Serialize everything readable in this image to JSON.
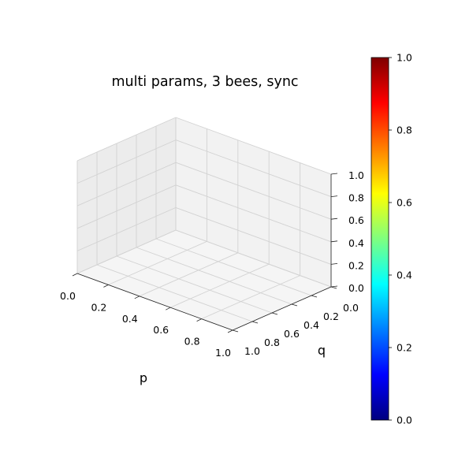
{
  "chart_data": {
    "type": "surface",
    "title": "multi params, 3 bees, sync",
    "xlabel": "p",
    "ylabel": "q",
    "zlabel": "",
    "xlim": [
      0.0,
      1.0
    ],
    "ylim": [
      0.0,
      1.0
    ],
    "zlim": [
      0.0,
      1.0
    ],
    "x_ticks": [
      "0.0",
      "0.2",
      "0.4",
      "0.6",
      "0.8",
      "1.0"
    ],
    "y_ticks": [
      "0.0",
      "0.2",
      "0.4",
      "0.6",
      "0.8",
      "1.0"
    ],
    "z_ticks": [
      "0.0",
      "0.2",
      "0.4",
      "0.6",
      "0.8",
      "1.0"
    ],
    "grid": true,
    "series": [],
    "colorbar": {
      "colormap": "jet",
      "range": [
        0.0,
        1.0
      ],
      "ticks": [
        "0.0",
        "0.2",
        "0.4",
        "0.6",
        "0.8",
        "1.0"
      ],
      "colors": [
        "#00007f",
        "#0000ff",
        "#007fff",
        "#00ffff",
        "#7fff7f",
        "#ffff00",
        "#ff7f00",
        "#ff0000",
        "#7f0000"
      ]
    }
  }
}
